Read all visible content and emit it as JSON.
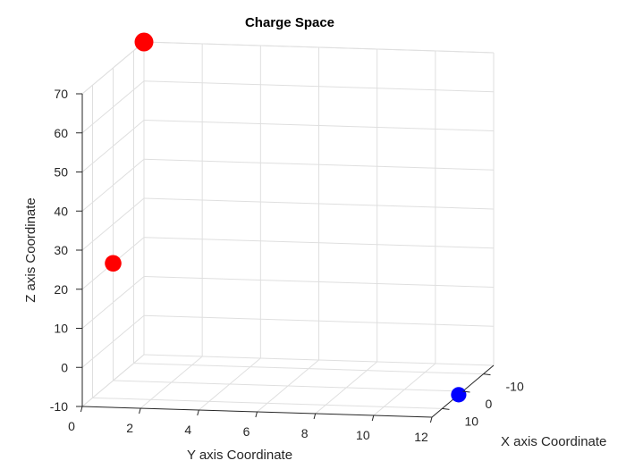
{
  "chart_data": {
    "type": "scatter",
    "dimensions": 3,
    "title": "Charge Space",
    "xlabel": "X axis Coordinate",
    "ylabel": "Y axis Coordinate",
    "zlabel": "Z axis Coordinate",
    "xlim": [
      -15,
      15
    ],
    "ylim": [
      0,
      12
    ],
    "zlim": [
      -10,
      70
    ],
    "x_ticks": [
      "-10",
      "0",
      "10"
    ],
    "x_tick_values": [
      -10,
      0,
      10
    ],
    "y_ticks": [
      "0",
      "2",
      "4",
      "6",
      "8",
      "10",
      "12"
    ],
    "y_tick_values": [
      0,
      2,
      4,
      6,
      8,
      10,
      12
    ],
    "z_ticks": [
      "-10",
      "0",
      "10",
      "20",
      "30",
      "40",
      "50",
      "60",
      "70"
    ],
    "z_tick_values": [
      -10,
      0,
      10,
      20,
      30,
      40,
      50,
      60,
      70
    ],
    "grid": true,
    "points": [
      {
        "x": 0,
        "y": 0,
        "z": 20,
        "color": "#ff0000"
      },
      {
        "x": -15,
        "y": 0,
        "z": 70,
        "color": "#ff0000"
      },
      {
        "x": 2,
        "y": 12,
        "z": -10,
        "color": "#0000ff"
      }
    ]
  }
}
